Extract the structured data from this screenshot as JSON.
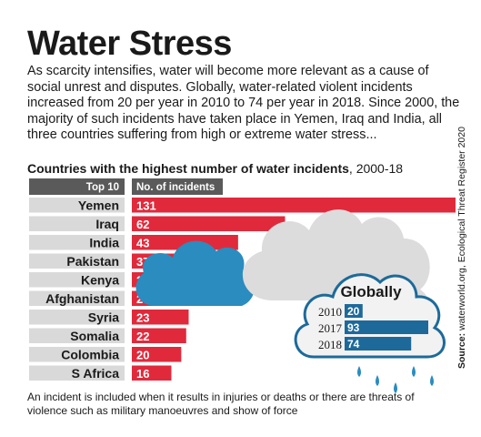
{
  "title": "Water Stress",
  "intro": "As scarcity intensifies, water will become more relevant as a cause of social unrest and disputes. Globally, water-related violent incidents increased from 20 per year in 2010 to 74 per year in 2018. Since 2000, the majority of such incidents have taken place in Yemen, Iraq and India, all three countries suffering from high or extreme water stress...",
  "subtitle": {
    "bold": "Countries with the highest number of water incidents",
    "rest": ", 2000-18"
  },
  "source": {
    "label": "Source:",
    "text": " waterworld.org, Ecological Threat Register 2020"
  },
  "footnote": "An incident is included when it results in injuries or deaths or there are threats of violence such as military manoeuvres and show of force",
  "colors": {
    "bar_red": "#e02a3c",
    "header_gray": "#5a5a5a",
    "band_gray": "#d9d9d9",
    "cloud_blue": "#2a8cbf",
    "cloud_gray": "#dcdcdc",
    "cloud_fill": "#f2f2f2",
    "bar_blue": "#1d6a9a"
  },
  "chart_data": [
    {
      "type": "bar",
      "orientation": "horizontal",
      "column_headers": [
        "Top 10",
        "No. of incidents"
      ],
      "categories": [
        "Yemen",
        "Iraq",
        "India",
        "Pakistan",
        "Kenya",
        "Afghanistan",
        "Syria",
        "Somalia",
        "Colombia",
        "S Africa"
      ],
      "values": [
        131,
        62,
        43,
        37,
        27,
        23,
        23,
        22,
        20,
        16
      ]
    },
    {
      "type": "bar",
      "orientation": "horizontal",
      "title": "Globally",
      "categories": [
        "2010",
        "2017",
        "2018"
      ],
      "values": [
        20,
        93,
        74
      ]
    }
  ]
}
